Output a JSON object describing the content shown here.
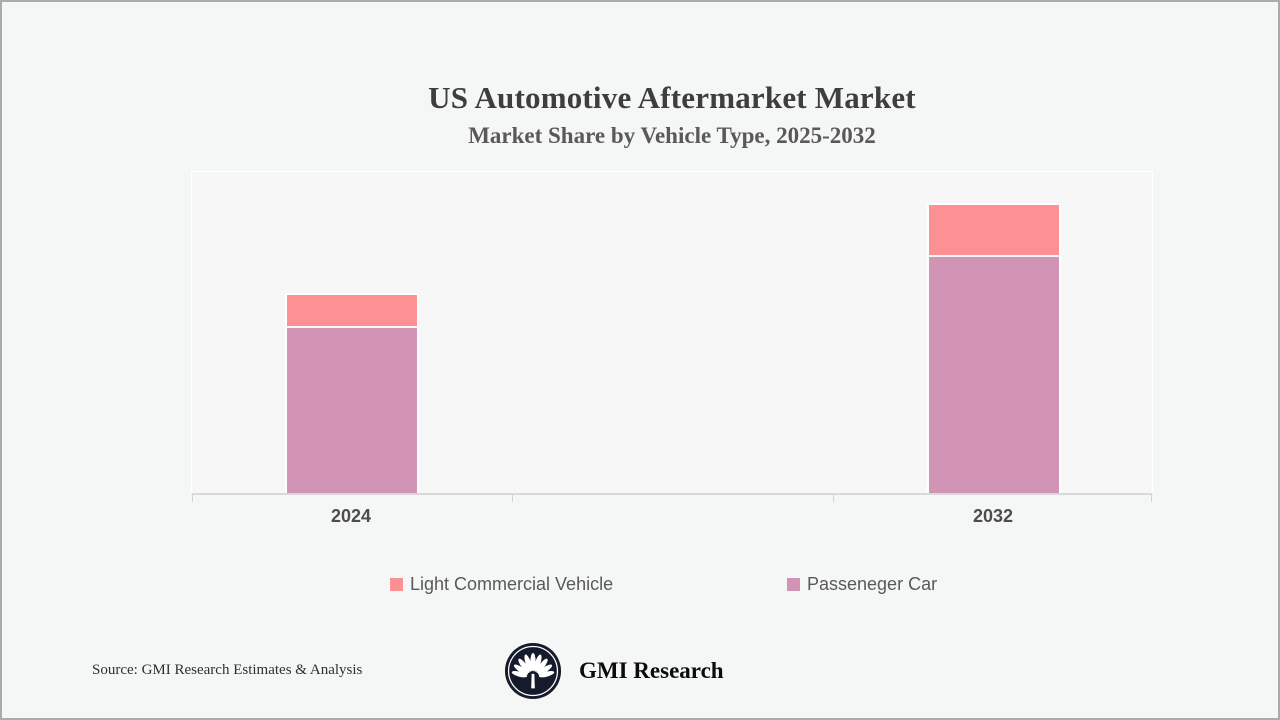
{
  "page": {
    "background": "#f5f6f6",
    "border_color": "#ababab"
  },
  "header": {
    "title": "US Automotive Aftermarket Market",
    "subtitle": "Market Share by Vehicle Type, 2025-2032"
  },
  "chart_data": {
    "type": "bar",
    "stacked": true,
    "categories": [
      "2024",
      "2032"
    ],
    "series": [
      {
        "name": "Passeneger Car",
        "color": "#d294b5",
        "values": [
          51.1,
          73.4
        ]
      },
      {
        "name": "Light Commercial Vehicle",
        "color": "#fd9093",
        "values": [
          9.9,
          15.5
        ]
      }
    ],
    "title": "US Automotive Aftermarket Market",
    "subtitle": "Market Share by Vehicle Type, 2025-2032",
    "xlabel": "",
    "ylabel": "",
    "ylim": [
      0,
      100
    ],
    "units": "relative share of plot height (value axis not shown)",
    "grid": false,
    "value_axis_visible": false,
    "legend_position": "bottom",
    "bar_outline_color": "#ffffff",
    "axis_line_color": "#d9d9d9"
  },
  "legend": {
    "items": [
      {
        "label": "Light Commercial Vehicle",
        "color": "#fd9093"
      },
      {
        "label": "Passeneger Car",
        "color": "#d294b5"
      }
    ]
  },
  "footer": {
    "source": "Source: GMI Research Estimates & Analysis",
    "brand": "GMI Research",
    "logo_bg": "#161b2b",
    "logo_fg": "#ffffff"
  }
}
